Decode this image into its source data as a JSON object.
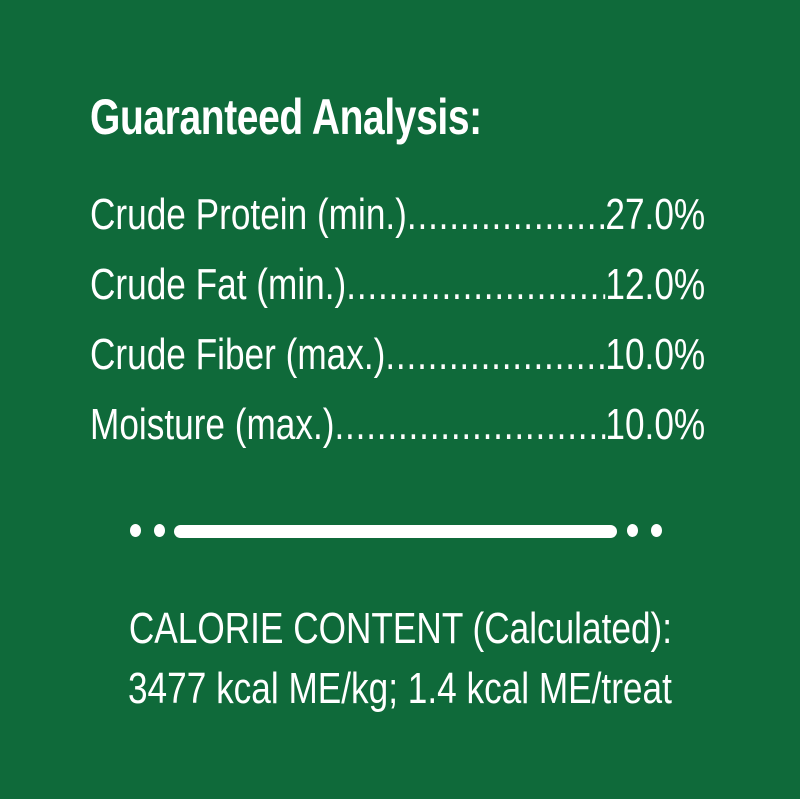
{
  "background_color": "#0f6a3a",
  "text_color": "#ffffff",
  "title": "Guaranteed Analysis:",
  "analysis": [
    {
      "label": "Crude Protein (min.)",
      "value": "27.0%"
    },
    {
      "label": "Crude Fat (min.)",
      "value": "12.0%"
    },
    {
      "label": "Crude Fiber (max.)",
      "value": "10.0%"
    },
    {
      "label": "Moisture (max.)",
      "value": "10.0%"
    }
  ],
  "calorie": {
    "heading": "CALORIE CONTENT (Calculated):",
    "value": "3477 kcal ME/kg; 1.4 kcal ME/treat"
  }
}
